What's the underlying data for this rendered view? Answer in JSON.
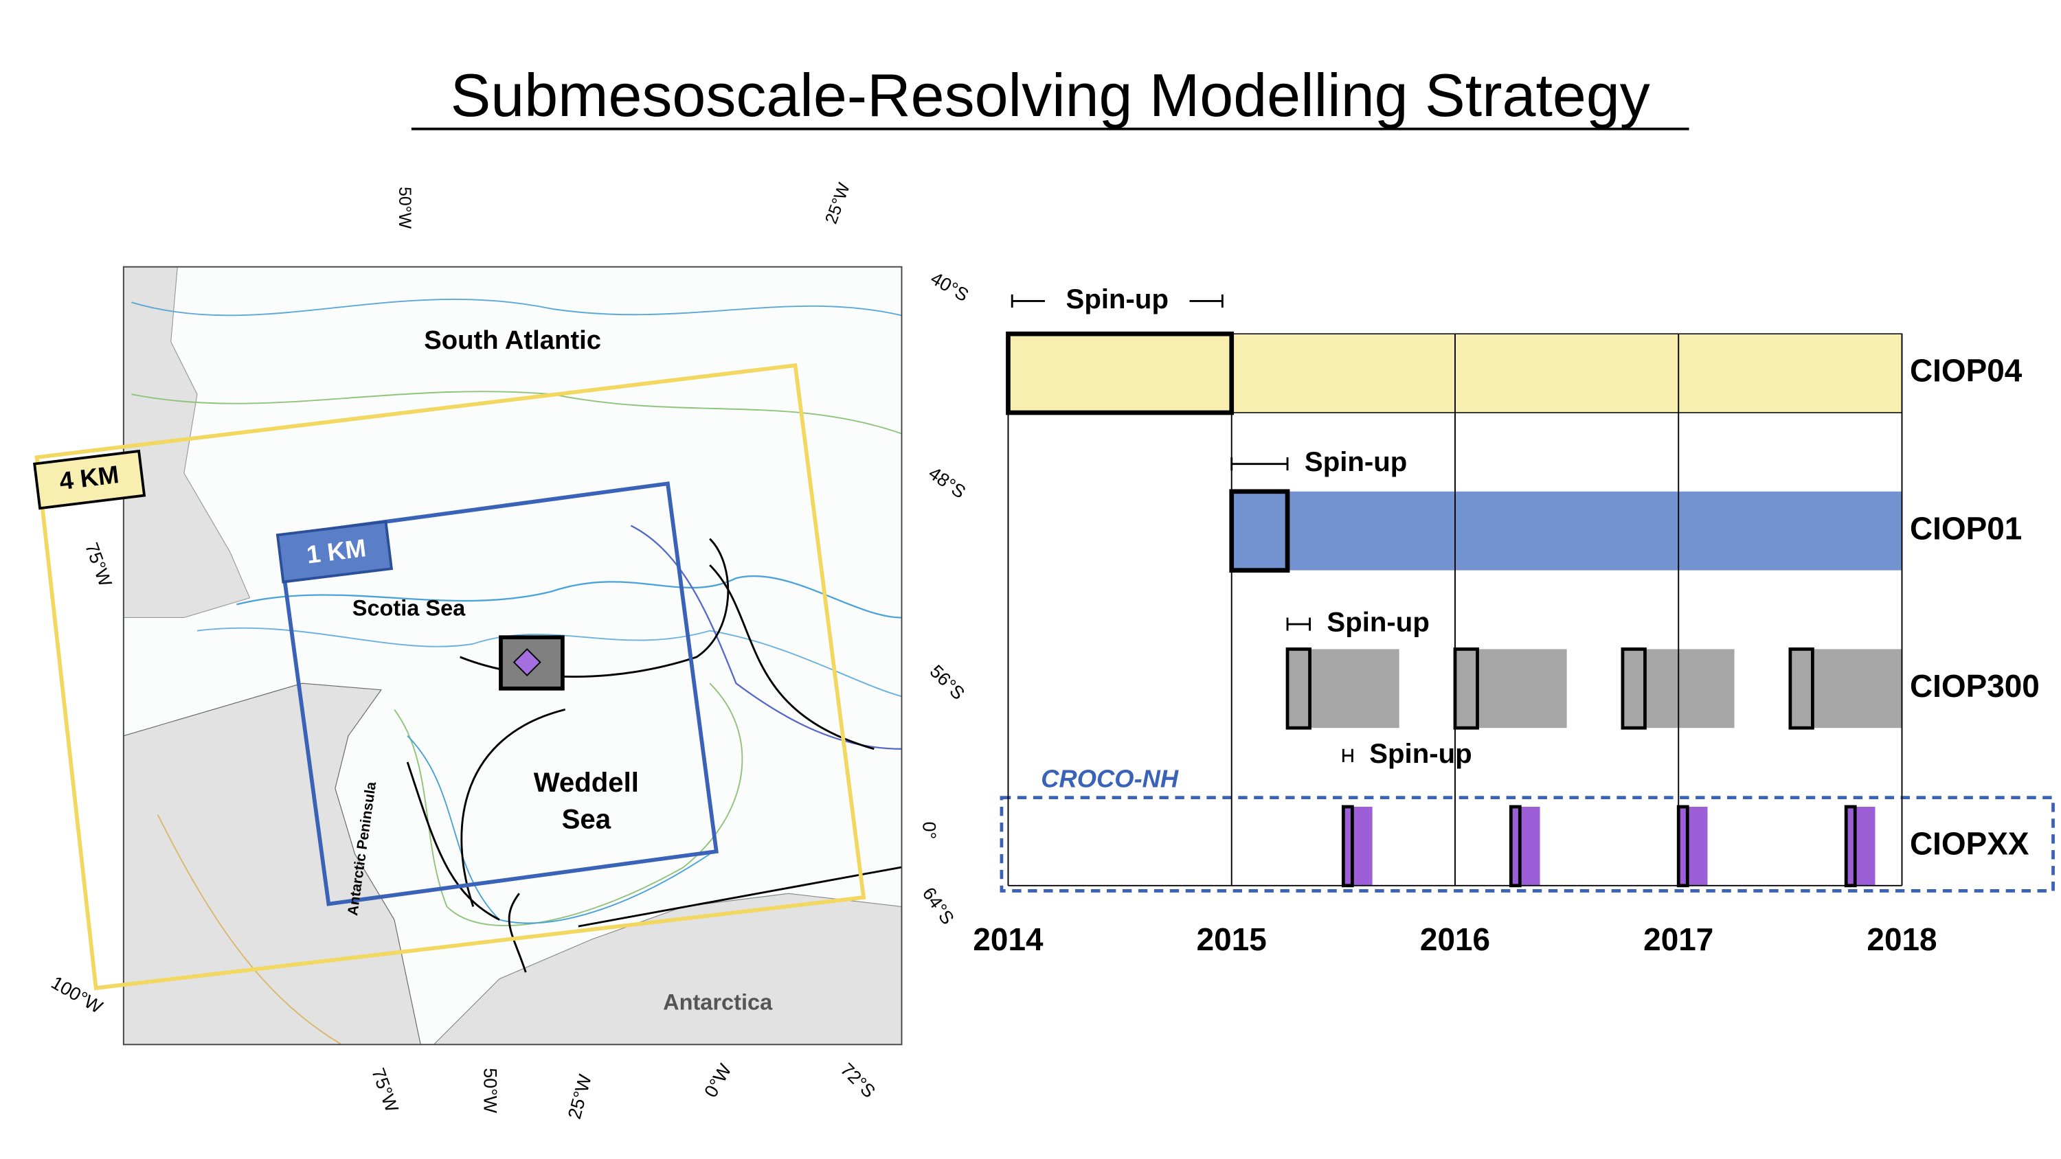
{
  "title": "Submesoscale-Resolving Modelling Strategy",
  "map": {
    "regions": [
      "South Atlantic",
      "Scotia Sea",
      "Weddell",
      "Sea",
      "Antarctic Peninsula",
      "Antarctica"
    ],
    "domains": [
      "4 KM",
      "1 KM"
    ],
    "graticule": [
      "50°W",
      "25°W",
      "40°S",
      "48°S",
      "56°S",
      "0°",
      "64°S",
      "75°W",
      "100°W",
      "75°W",
      "50°W",
      "25°W",
      "0°W",
      "72°S"
    ]
  },
  "chart_data": {
    "type": "gantt",
    "xlim": [
      2014,
      2018
    ],
    "xticks": [
      2014,
      2015,
      2016,
      2017,
      2018
    ],
    "annotation": "CROCO-NH",
    "series": [
      {
        "name": "CIOP04",
        "color": "#f8eeb0",
        "spinup_label": "Spin-up",
        "segments": [
          [
            2014,
            2018
          ]
        ],
        "spinup": [
          [
            2014,
            2015
          ]
        ]
      },
      {
        "name": "CIOP01",
        "color": "#7393d0",
        "spinup_label": "Spin-up",
        "segments": [
          [
            2015,
            2018
          ]
        ],
        "spinup": [
          [
            2015,
            2015.25
          ]
        ]
      },
      {
        "name": "CIOP300",
        "color": "#a6a6a6",
        "spinup_label": "Spin-up",
        "segments": [
          [
            2015.25,
            2015.75
          ],
          [
            2016,
            2016.5
          ],
          [
            2016.75,
            2017.25
          ],
          [
            2017.5,
            2018
          ]
        ],
        "spinup": [
          [
            2015.25,
            2015.35
          ],
          [
            2016,
            2016.1
          ],
          [
            2016.75,
            2016.85
          ],
          [
            2017.5,
            2017.6
          ]
        ]
      },
      {
        "name": "CIOPXX",
        "color": "#9d5fd8",
        "spinup_label": "Spin-up",
        "segments": [
          [
            2015.5,
            2015.63
          ],
          [
            2016.25,
            2016.38
          ],
          [
            2017,
            2017.13
          ],
          [
            2017.75,
            2017.88
          ]
        ],
        "spinup": [
          [
            2015.5,
            2015.54
          ],
          [
            2016.25,
            2016.29
          ],
          [
            2017,
            2017.04
          ],
          [
            2017.75,
            2017.79
          ]
        ]
      }
    ]
  }
}
